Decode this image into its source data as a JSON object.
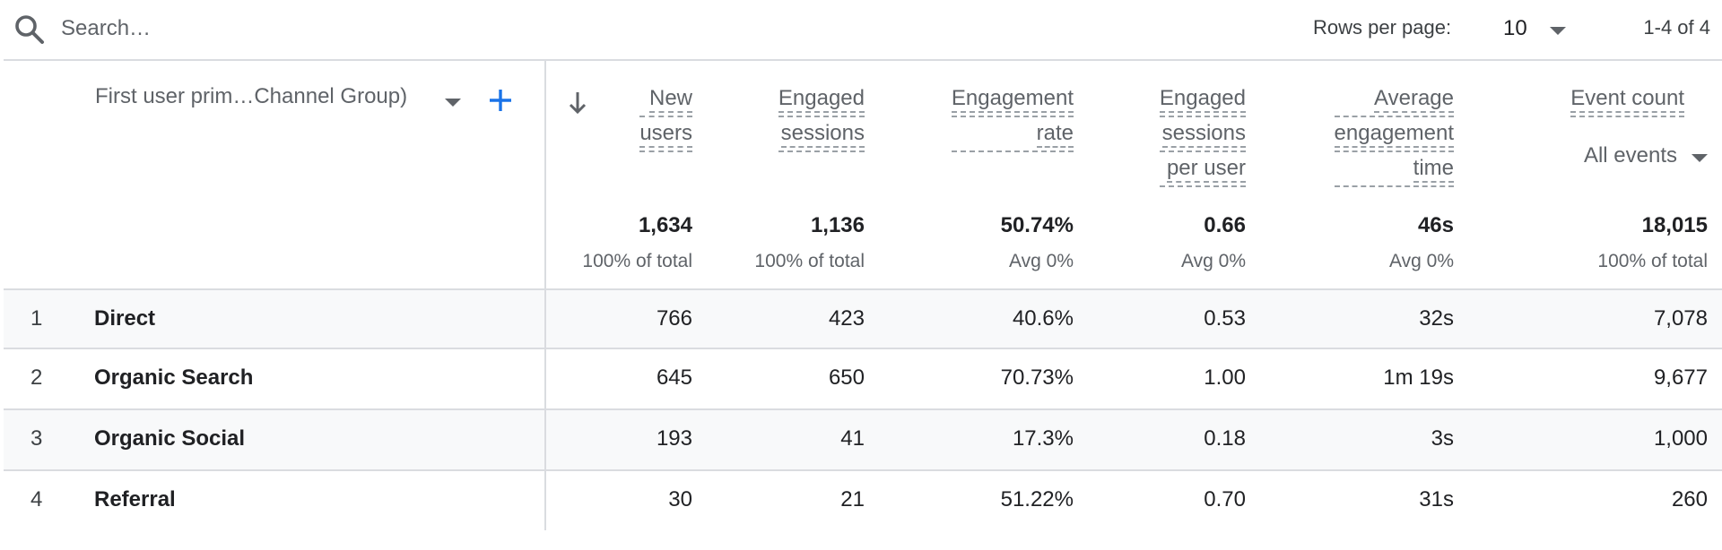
{
  "toolbar": {
    "search_placeholder": "Search…",
    "rows_per_page_label": "Rows per page:",
    "rows_per_page_value": "10",
    "pagination": "1-4 of 4"
  },
  "table": {
    "dimension_header": "First user prim…Channel Group)",
    "sort_column": "New users",
    "columns": [
      {
        "lines": [
          "New",
          "users"
        ],
        "total": "1,634",
        "total_sub": "100% of total"
      },
      {
        "lines": [
          "Engaged",
          "sessions"
        ],
        "total": "1,136",
        "total_sub": "100% of total"
      },
      {
        "lines": [
          "Engagement",
          "rate"
        ],
        "total": "50.74%",
        "total_sub": "Avg 0%"
      },
      {
        "lines": [
          "Engaged",
          "sessions",
          "per user"
        ],
        "total": "0.66",
        "total_sub": "Avg 0%"
      },
      {
        "lines": [
          "Average",
          "engagement",
          "time"
        ],
        "total": "46s",
        "total_sub": "Avg 0%"
      },
      {
        "lines": [
          "Event count"
        ],
        "filter": "All events",
        "total": "18,015",
        "total_sub": "100% of total"
      }
    ],
    "rows": [
      {
        "index": "1",
        "name": "Direct",
        "values": [
          "766",
          "423",
          "40.6%",
          "0.53",
          "32s",
          "7,078"
        ]
      },
      {
        "index": "2",
        "name": "Organic Search",
        "values": [
          "645",
          "650",
          "70.73%",
          "1.00",
          "1m 19s",
          "9,677"
        ]
      },
      {
        "index": "3",
        "name": "Organic Social",
        "values": [
          "193",
          "41",
          "17.3%",
          "0.18",
          "3s",
          "1,000"
        ]
      },
      {
        "index": "4",
        "name": "Referral",
        "values": [
          "30",
          "21",
          "51.22%",
          "0.70",
          "31s",
          "260"
        ]
      }
    ]
  },
  "colors": {
    "accent": "#1a73e8",
    "text_primary": "#202124",
    "text_secondary": "#5f6368",
    "divider": "#dadce0",
    "row_shade": "#f8f9fa"
  },
  "icons": {
    "search": "search-icon",
    "dropdown": "chevron-down-icon",
    "add": "plus-icon",
    "sort": "arrow-down-icon"
  }
}
